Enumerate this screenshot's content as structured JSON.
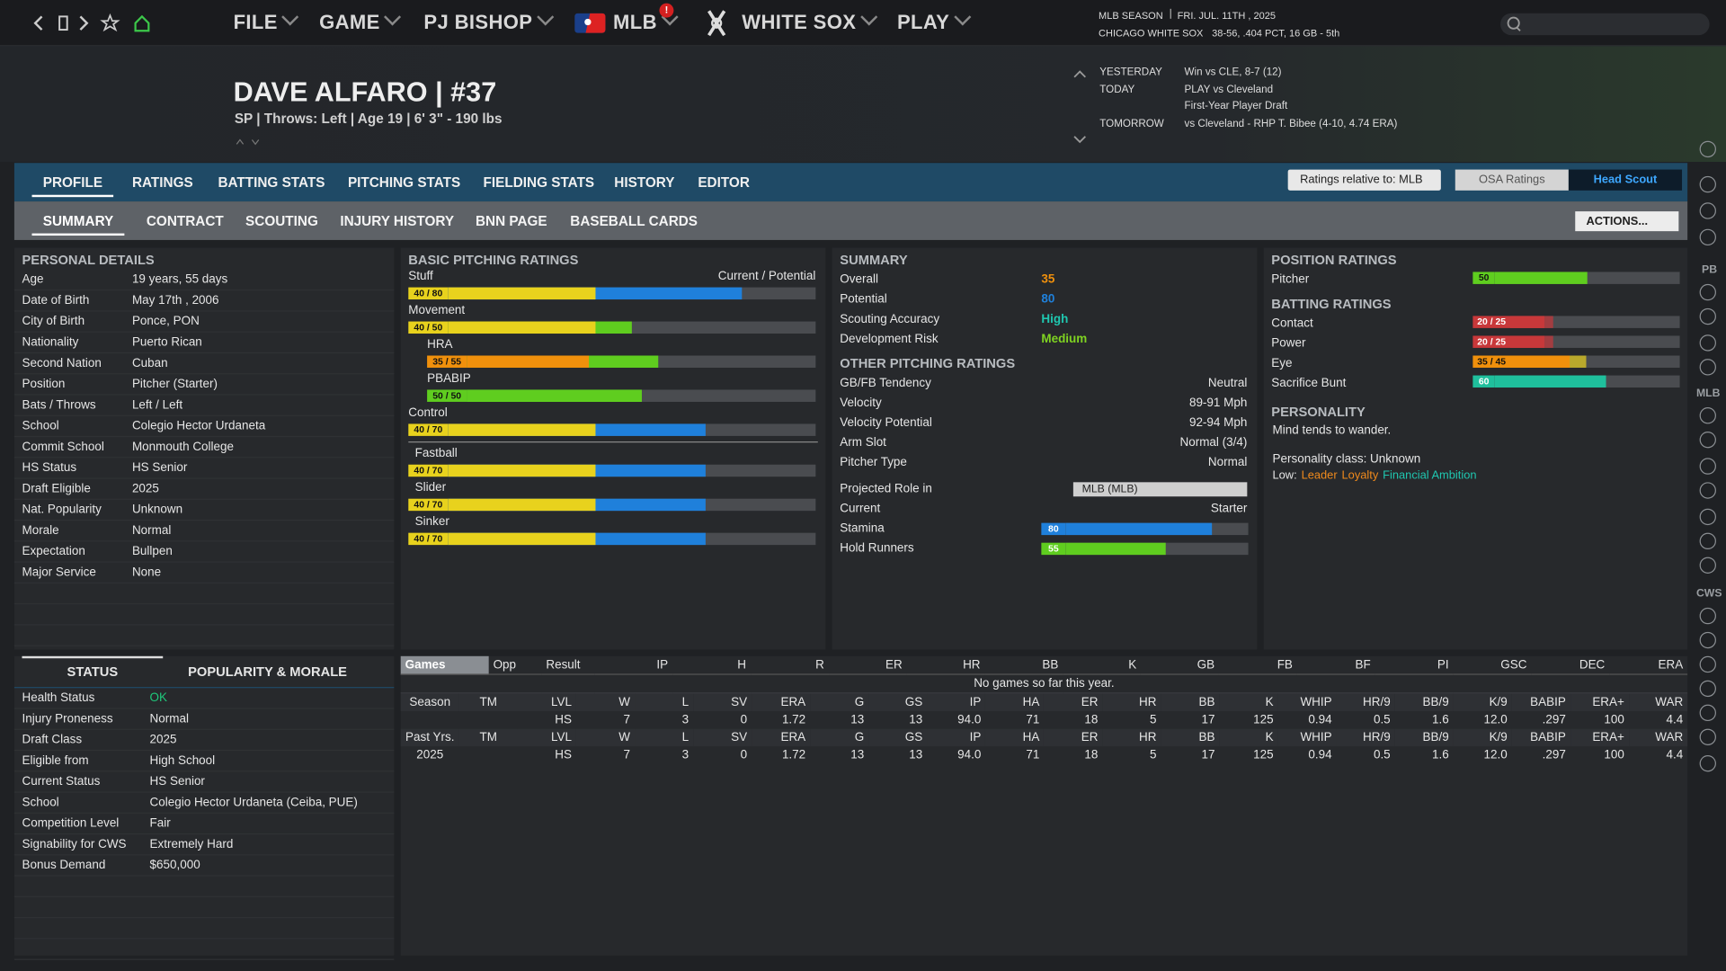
{
  "nav": {
    "menu": [
      "FILE",
      "GAME",
      "PJ BISHOP",
      "MLB",
      "WHITE SOX",
      "PLAY"
    ],
    "alert": "!",
    "season": "MLB SEASON",
    "date": "FRI. JUL. 11TH , 2025",
    "team": "CHICAGO WHITE SOX",
    "record": "38-56, .404 PCT, 16 GB - 5th"
  },
  "schedule": [
    {
      "day": "YESTERDAY",
      "lines": [
        "Win vs CLE, 8-7 (12)"
      ]
    },
    {
      "day": "TODAY",
      "lines": [
        "PLAY vs Cleveland",
        "First-Year Player Draft"
      ]
    },
    {
      "day": "TOMORROW",
      "lines": [
        "vs Cleveland - RHP T. Bibee (4-10, 4.74 ERA)"
      ]
    }
  ],
  "player": {
    "name": "DAVE ALFARO  |  #37",
    "subtitle": "SP | Throws: Left  |  Age 19  |  6' 3\" - 190 lbs"
  },
  "tabs": [
    "PROFILE",
    "RATINGS",
    "BATTING STATS",
    "PITCHING STATS",
    "FIELDING STATS",
    "HISTORY",
    "EDITOR"
  ],
  "controls": {
    "relative": "Ratings relative to: MLB",
    "osa": "OSA Ratings",
    "scout": "Head Scout",
    "actions": "ACTIONS..."
  },
  "subtabs": [
    "SUMMARY",
    "CONTRACT",
    "SCOUTING",
    "INJURY HISTORY",
    "BNN PAGE",
    "BASEBALL CARDS"
  ],
  "personal_details": {
    "title": "PERSONAL DETAILS",
    "rows": [
      [
        "Age",
        "19 years, 55 days"
      ],
      [
        "Date of Birth",
        "May 17th , 2006"
      ],
      [
        "City of Birth",
        "Ponce, PON"
      ],
      [
        "Nationality",
        "Puerto Rican"
      ],
      [
        "Second Nation",
        "Cuban"
      ],
      [
        "Position",
        "Pitcher (Starter)"
      ],
      [
        "Bats / Throws",
        "Left / Left"
      ],
      [
        "School",
        "Colegio Hector Urdaneta"
      ],
      [
        "Commit School",
        "Monmouth College"
      ],
      [
        "HS Status",
        "HS Senior"
      ],
      [
        "Draft Eligible",
        "2025"
      ],
      [
        "Nat. Popularity",
        "Unknown"
      ],
      [
        "Morale",
        "Normal"
      ],
      [
        "Expectation",
        "Bullpen"
      ],
      [
        "Major Service",
        "None"
      ]
    ]
  },
  "basic_pitching": {
    "title": "BASIC PITCHING RATINGS",
    "legend": "Current / Potential",
    "ratings": [
      {
        "name": "Stuff",
        "label": "40 / 80",
        "current": 40,
        "potential": 80
      },
      {
        "name": "Movement",
        "label": "40 / 50",
        "current": 40,
        "potential": 50,
        "components": [
          {
            "name": "HRA",
            "label": "35 / 55",
            "current": 35,
            "potential": 55
          },
          {
            "name": "PBABIP",
            "label": "50 / 50",
            "current": 50,
            "potential": 50
          }
        ]
      },
      {
        "name": "Control",
        "label": "40 / 70",
        "current": 40,
        "potential": 70
      }
    ],
    "pitches": [
      {
        "name": "Fastball",
        "label": "40 / 70",
        "current": 40,
        "potential": 70
      },
      {
        "name": "Slider",
        "label": "40 / 70",
        "current": 40,
        "potential": 70
      },
      {
        "name": "Sinker",
        "label": "40 / 70",
        "current": 40,
        "potential": 70
      }
    ]
  },
  "summary": {
    "title": "SUMMARY",
    "overall_label": "Overall",
    "overall": 35,
    "potential_label": "Potential",
    "potential": 80,
    "accuracy_label": "Scouting Accuracy",
    "accuracy": "High",
    "risk_label": "Development Risk",
    "risk": "Medium"
  },
  "other_pitching": {
    "title": "OTHER PITCHING RATINGS",
    "rows": [
      [
        "GB/FB Tendency",
        "Neutral"
      ],
      [
        "Velocity",
        "89-91 Mph"
      ],
      [
        "Velocity Potential",
        "92-94 Mph"
      ],
      [
        "Arm Slot",
        "Normal (3/4)"
      ],
      [
        "Pitcher Type",
        "Normal"
      ]
    ],
    "role_label": "Projected Role in",
    "role": "MLB (MLB)",
    "current_label": "Current",
    "current": "Starter",
    "bars": [
      {
        "name": "Stamina",
        "value": 80
      },
      {
        "name": "Hold Runners",
        "value": 55
      }
    ]
  },
  "position_ratings": {
    "title": "POSITION RATINGS",
    "rows": [
      {
        "name": "Pitcher",
        "value": 50
      }
    ]
  },
  "batting_ratings": {
    "title": "BATTING RATINGS",
    "rows": [
      {
        "name": "Contact",
        "label": "20 / 25",
        "current": 20,
        "potential": 25
      },
      {
        "name": "Power",
        "label": "20 / 25",
        "current": 20,
        "potential": 25
      },
      {
        "name": "Eye",
        "label": "35 / 45",
        "current": 35,
        "potential": 45
      },
      {
        "name": "Sacrifice Bunt",
        "value": 60
      }
    ]
  },
  "personality": {
    "title": "PERSONALITY",
    "note": "Mind tends to wander.",
    "class": "Personality class: Unknown",
    "low_label": "Low:",
    "low": [
      "Leader",
      "Loyalty",
      "Financial Ambition"
    ]
  },
  "status": {
    "tabs": [
      "STATUS",
      "POPULARITY & MORALE"
    ],
    "rows": [
      [
        "Health Status",
        "OK"
      ],
      [
        "Injury Proneness",
        "Normal"
      ],
      [
        "Draft Class",
        "2025"
      ],
      [
        "Eligible from",
        "High School"
      ],
      [
        "Current Status",
        "HS Senior"
      ],
      [
        "School",
        "Colegio Hector Urdaneta (Ceiba, PUE)"
      ],
      [
        "Competition Level",
        "Fair"
      ],
      [
        "Signability for CWS",
        "Extremely Hard"
      ],
      [
        "Bonus Demand",
        "$650,000"
      ]
    ]
  },
  "games": {
    "columns": [
      "Games",
      "Opp",
      "Result",
      "IP",
      "H",
      "R",
      "ER",
      "HR",
      "BB",
      "K",
      "GB",
      "FB",
      "BF",
      "PI",
      "GSC",
      "DEC",
      "ERA"
    ],
    "message": "No games so far this year."
  },
  "stats": [
    {
      "columns": [
        "Season",
        "TM",
        "LVL",
        "W",
        "L",
        "SV",
        "ERA",
        "G",
        "GS",
        "IP",
        "HA",
        "ER",
        "HR",
        "BB",
        "K",
        "WHIP",
        "HR/9",
        "BB/9",
        "K/9",
        "BABIP",
        "ERA+",
        "WAR"
      ],
      "row": [
        null,
        null,
        "HS",
        7,
        3,
        0,
        1.72,
        13,
        13,
        "94.0",
        71,
        18,
        5,
        17,
        125,
        0.94,
        0.5,
        1.6,
        "12.0",
        ".297",
        100,
        4.4
      ]
    },
    {
      "columns": [
        "Past Yrs.",
        "TM",
        "LVL",
        "W",
        "L",
        "SV",
        "ERA",
        "G",
        "GS",
        "IP",
        "HA",
        "ER",
        "HR",
        "BB",
        "K",
        "WHIP",
        "HR/9",
        "BB/9",
        "K/9",
        "BABIP",
        "ERA+",
        "WAR"
      ],
      "row": [
        "2025",
        null,
        "HS",
        7,
        3,
        0,
        1.72,
        13,
        13,
        "94.0",
        71,
        18,
        5,
        17,
        125,
        0.94,
        0.5,
        1.6,
        "12.0",
        ".297",
        100,
        4.4
      ]
    }
  ],
  "sidebar": [
    "PB",
    "MLB",
    "CWS"
  ]
}
